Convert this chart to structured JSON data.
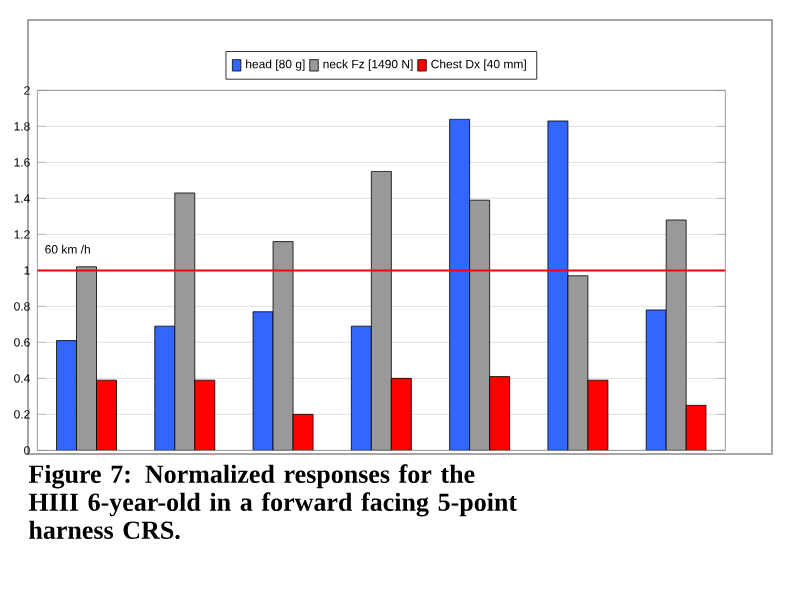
{
  "chart_data": {
    "type": "bar",
    "categories": [
      null,
      null,
      null,
      null,
      null,
      null,
      null
    ],
    "series": [
      {
        "name": "head [80 g]",
        "color": "#3366ff",
        "values": [
          0.61,
          0.69,
          0.77,
          0.69,
          1.84,
          1.83,
          0.78
        ]
      },
      {
        "name": "neck Fz [1490 N]",
        "color": "#999999",
        "values": [
          1.02,
          1.43,
          1.16,
          1.55,
          1.39,
          0.97,
          1.28
        ]
      },
      {
        "name": "Chest Dx [40 mm]",
        "color": "#ff0000",
        "values": [
          0.39,
          0.39,
          0.2,
          0.4,
          0.41,
          0.39,
          0.25
        ]
      }
    ],
    "ylim": [
      0,
      2
    ],
    "yticks": [
      0,
      0.2,
      0.4,
      0.6,
      0.8,
      1,
      1.2,
      1.4,
      1.6,
      1.8,
      2
    ],
    "grid": "y",
    "legend": "top",
    "ref_lines": [
      {
        "axis": "y",
        "value": 1,
        "label": "60 km /h",
        "color": "#ff0000"
      }
    ],
    "annotations": [
      "Figure 7: Normalized responses for the HIII 6-year-old in a forward facing 5-point harness CRS."
    ]
  }
}
